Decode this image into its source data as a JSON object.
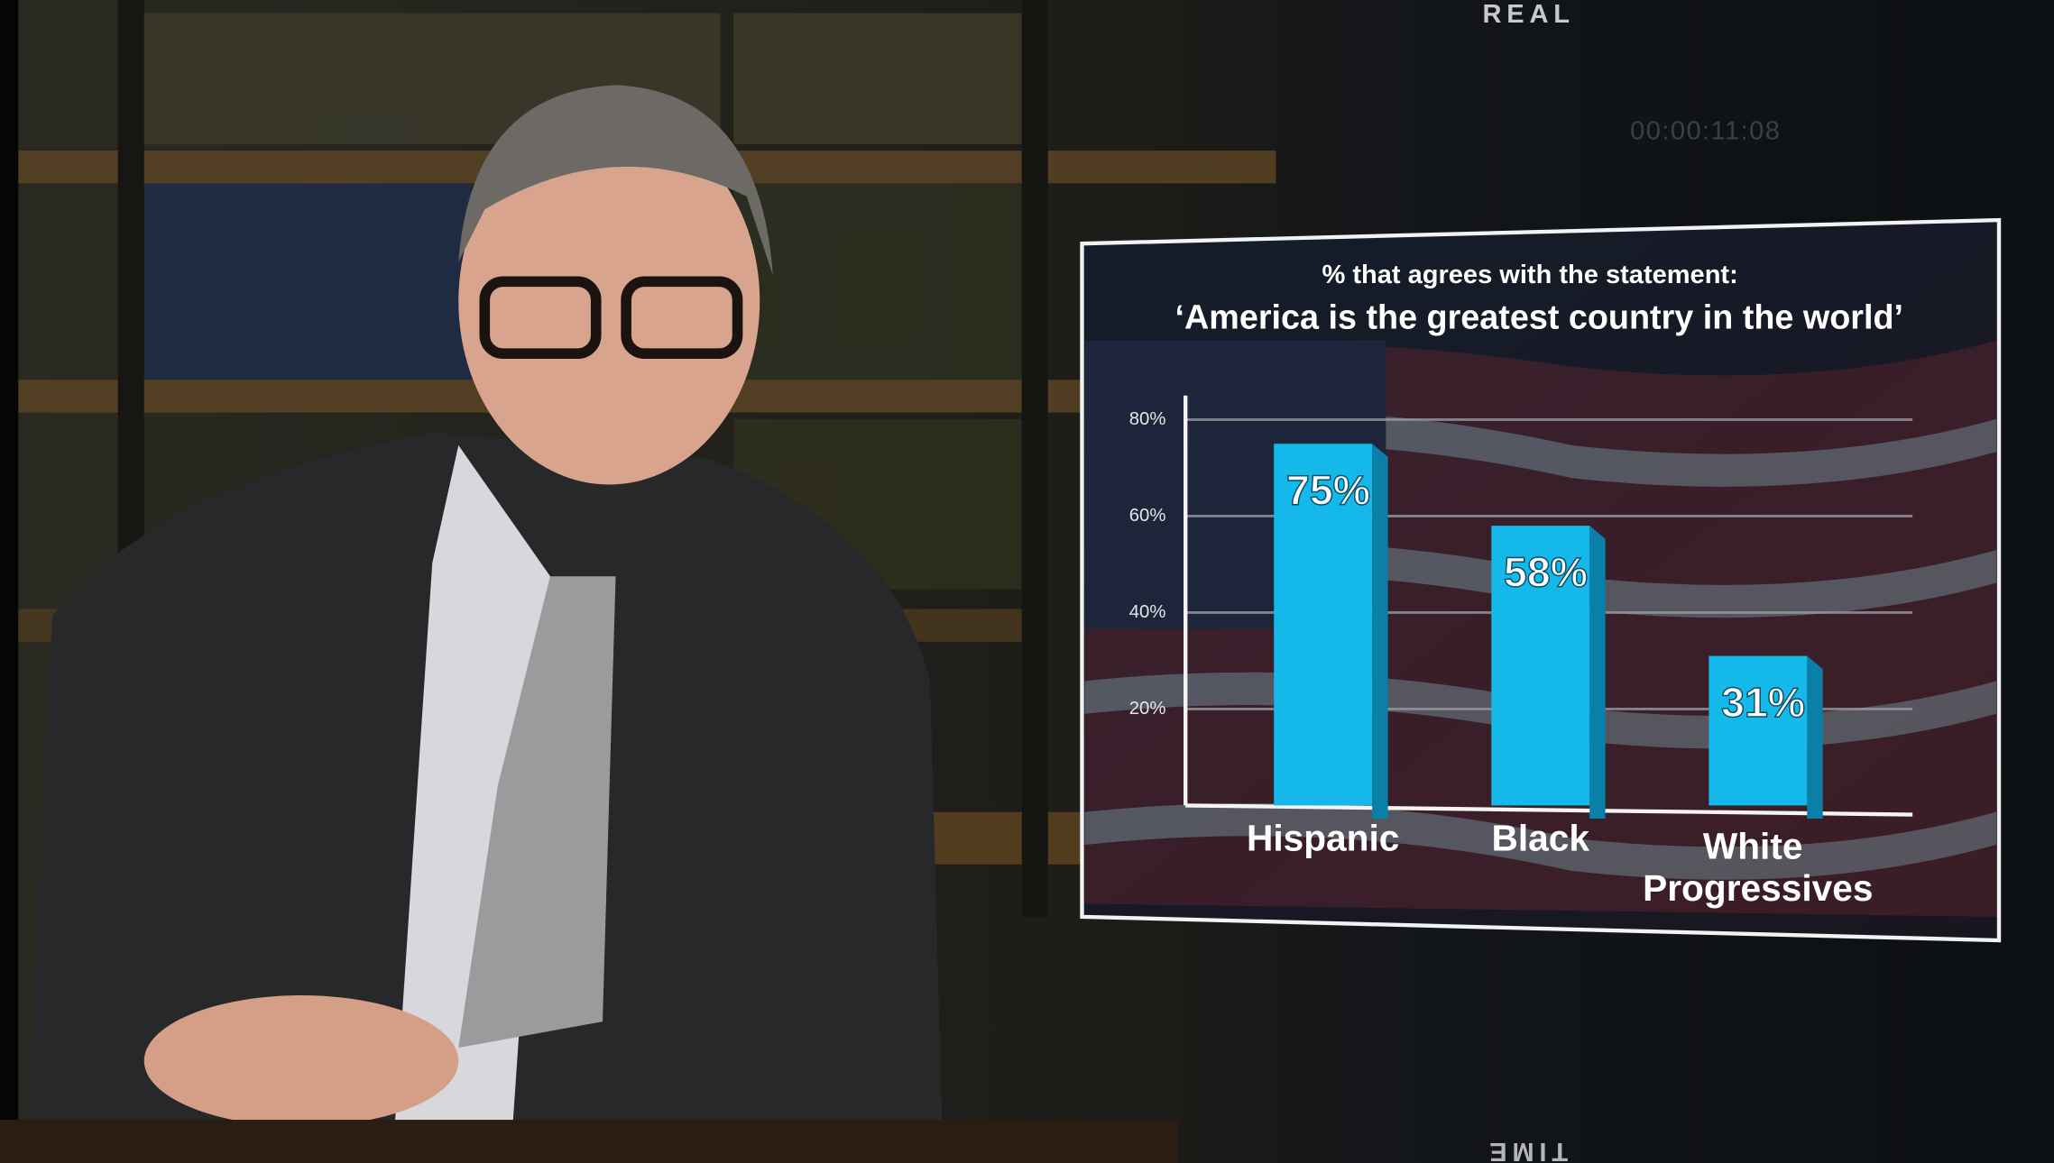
{
  "overlay": {
    "brand_top": "REAL",
    "timecode": "00:00:11:08",
    "brand_bottom": "TIME"
  },
  "chart_data": {
    "type": "bar",
    "title": "% that agrees with the statement:",
    "subtitle": "‘America is the greatest country in the world’",
    "categories": [
      "Hispanic",
      "Black",
      "White Progressives"
    ],
    "values": [
      75,
      58,
      31
    ],
    "value_labels": [
      "75%",
      "58%",
      "31%"
    ],
    "color": "#14b9ea",
    "ylim": [
      0,
      85
    ],
    "yticks": [
      {
        "value": 20,
        "label": "20%"
      },
      {
        "value": 40,
        "label": "40%"
      },
      {
        "value": 60,
        "label": "60%"
      },
      {
        "value": 80,
        "label": "80%"
      }
    ],
    "grid": true
  }
}
